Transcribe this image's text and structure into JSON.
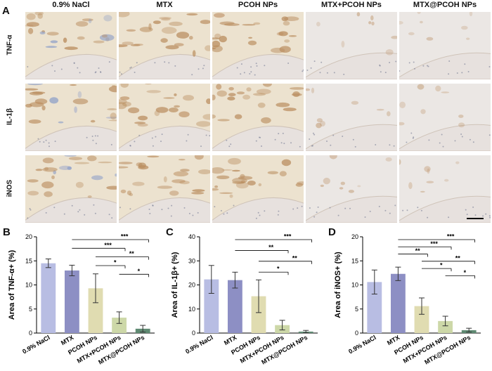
{
  "panel_a": {
    "letter": "A",
    "columns": [
      "0.9% NaCl",
      "MTX",
      "PCOH NPs",
      "MTX+PCOH NPs",
      "MTX@PCOH NPs"
    ],
    "rows": [
      "TNF-α",
      "IL-1β",
      "iNOS"
    ],
    "tile_colors": {
      "background_inflamed": "#ece2cf",
      "background_clean": "#ebe7e4",
      "stain_brown": "#b88a5b",
      "hematoxylin_blue": "#8fa0c8",
      "cartilage": "#e7e1de"
    }
  },
  "chart_data": [
    {
      "panel": "B",
      "type": "bar",
      "ylabel": "Area of TNF-α+ (%)",
      "ylim": [
        0,
        20
      ],
      "yticks": [
        0,
        5,
        10,
        15,
        20
      ],
      "categories": [
        "0.9% NaCl",
        "MTX",
        "PCOH NPs",
        "MTX+PCOH NPs",
        "MTX@PCOH NPs"
      ],
      "values": [
        14.5,
        13.0,
        9.3,
        3.2,
        0.9
      ],
      "errors": [
        0.9,
        1.1,
        3.0,
        1.2,
        0.7
      ],
      "significance": [
        {
          "from": 1,
          "to": 4,
          "label": "***"
        },
        {
          "from": 1,
          "to": 3,
          "label": "***"
        },
        {
          "from": 2,
          "to": 4,
          "label": "**"
        },
        {
          "from": 2,
          "to": 3,
          "label": "*"
        },
        {
          "from": 3,
          "to": 4,
          "label": "*"
        }
      ]
    },
    {
      "panel": "C",
      "type": "bar",
      "ylabel": "Area of IL-1β+ (%)",
      "ylim": [
        0,
        40
      ],
      "yticks": [
        0,
        10,
        20,
        30,
        40
      ],
      "categories": [
        "0.9% NaCl",
        "MTX",
        "PCOH NPs",
        "MTX+PCOH NPs",
        "MTX@PCOH NPs"
      ],
      "values": [
        22.3,
        22.0,
        15.3,
        3.3,
        0.6
      ],
      "errors": [
        5.8,
        3.3,
        6.8,
        2.0,
        0.5
      ],
      "significance": [
        {
          "from": 1,
          "to": 4,
          "label": "***"
        },
        {
          "from": 1,
          "to": 3,
          "label": "**"
        },
        {
          "from": 2,
          "to": 4,
          "label": "**"
        },
        {
          "from": 2,
          "to": 3,
          "label": "*"
        }
      ]
    },
    {
      "panel": "D",
      "type": "bar",
      "ylabel": "Area of iNOS+ (%)",
      "ylim": [
        0,
        20
      ],
      "yticks": [
        0,
        5,
        10,
        15,
        20
      ],
      "categories": [
        "0.9% NaCl",
        "MTX",
        "PCOH NPs",
        "MTX+PCOH NPs",
        "MTX@PCOH NPs"
      ],
      "values": [
        10.6,
        12.3,
        5.6,
        2.5,
        0.6
      ],
      "errors": [
        2.5,
        1.4,
        1.7,
        1.0,
        0.4
      ],
      "significance": [
        {
          "from": 1,
          "to": 4,
          "label": "***"
        },
        {
          "from": 1,
          "to": 3,
          "label": "***"
        },
        {
          "from": 1,
          "to": 2,
          "label": "**"
        },
        {
          "from": 2,
          "to": 4,
          "label": "**"
        },
        {
          "from": 2,
          "to": 3,
          "label": "*"
        },
        {
          "from": 3,
          "to": 4,
          "label": "*"
        }
      ]
    }
  ],
  "bar_colors": [
    "#b8bde3",
    "#8d8fc4",
    "#e0dcb1",
    "#cdd8a8",
    "#5f8a72"
  ],
  "chart_letters": [
    "B",
    "C",
    "D"
  ]
}
